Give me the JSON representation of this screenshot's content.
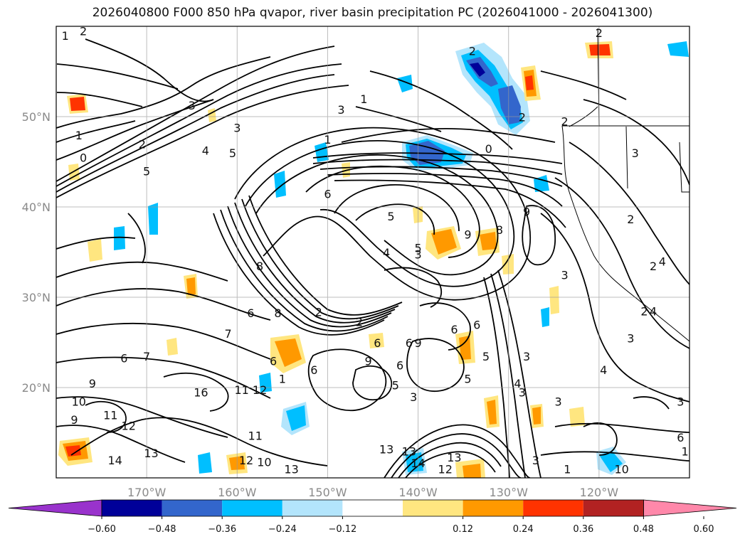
{
  "title": "2026040800 F000 850 hPa qvapor, river basin precipitation PC (2026041000 - 2026041300)",
  "map": {
    "lon_range": [
      -180,
      -110
    ],
    "lat_range": [
      10,
      60
    ],
    "gridlines": true,
    "lat_ticks": [
      {
        "value": 50,
        "label": "50°N"
      },
      {
        "value": 40,
        "label": "40°N"
      },
      {
        "value": 30,
        "label": "30°N"
      },
      {
        "value": 20,
        "label": "20°N"
      }
    ],
    "lon_ticks": [
      {
        "value": -170,
        "label": "170°W"
      },
      {
        "value": -160,
        "label": "160°W"
      },
      {
        "value": -150,
        "label": "150°W"
      },
      {
        "value": -140,
        "label": "140°W"
      },
      {
        "value": -130,
        "label": "130°W"
      },
      {
        "value": -120,
        "label": "120°W"
      }
    ],
    "contour_labels": [
      {
        "text": "2",
        "lon": -177,
        "lat": 59
      },
      {
        "text": "1",
        "lon": -179,
        "lat": 58.5
      },
      {
        "text": "3",
        "lon": -165,
        "lat": 50.8
      },
      {
        "text": "2",
        "lon": -170.5,
        "lat": 46.5
      },
      {
        "text": "1",
        "lon": -177.5,
        "lat": 47.5
      },
      {
        "text": "0",
        "lon": -177,
        "lat": 45
      },
      {
        "text": "5",
        "lon": -170,
        "lat": 43.5
      },
      {
        "text": "4",
        "lon": -163.5,
        "lat": 45.8
      },
      {
        "text": "5",
        "lon": -160.5,
        "lat": 45.5
      },
      {
        "text": "3",
        "lon": -160,
        "lat": 48.3
      },
      {
        "text": "3",
        "lon": -148.5,
        "lat": 50.3
      },
      {
        "text": "1",
        "lon": -146,
        "lat": 51.5
      },
      {
        "text": "1",
        "lon": -150,
        "lat": 47
      },
      {
        "text": "0",
        "lon": -132.2,
        "lat": 46
      },
      {
        "text": "2",
        "lon": -134,
        "lat": 56.8
      },
      {
        "text": "2",
        "lon": -120,
        "lat": 58.8
      },
      {
        "text": "2",
        "lon": -128.5,
        "lat": 49.5
      },
      {
        "text": "2",
        "lon": -123.8,
        "lat": 49
      },
      {
        "text": "3",
        "lon": -116,
        "lat": 45.5
      },
      {
        "text": "2",
        "lon": -116.5,
        "lat": 38.2
      },
      {
        "text": "2",
        "lon": -114,
        "lat": 33
      },
      {
        "text": "3",
        "lon": -123.8,
        "lat": 32
      },
      {
        "text": "4",
        "lon": -113,
        "lat": 33.5
      },
      {
        "text": "2",
        "lon": -115,
        "lat": 28
      },
      {
        "text": "4",
        "lon": -114,
        "lat": 28
      },
      {
        "text": "3",
        "lon": -116.5,
        "lat": 25
      },
      {
        "text": "4",
        "lon": -119.5,
        "lat": 21.5
      },
      {
        "text": "3",
        "lon": -111,
        "lat": 18
      },
      {
        "text": "6",
        "lon": -111,
        "lat": 14
      },
      {
        "text": "1",
        "lon": -110.5,
        "lat": 12.5
      },
      {
        "text": "10",
        "lon": -117.5,
        "lat": 10.5
      },
      {
        "text": "5",
        "lon": -143,
        "lat": 38.5
      },
      {
        "text": "4",
        "lon": -143.5,
        "lat": 34.5
      },
      {
        "text": "5",
        "lon": -140,
        "lat": 35
      },
      {
        "text": "3",
        "lon": -140,
        "lat": 34.3
      },
      {
        "text": "9",
        "lon": -134.5,
        "lat": 36.5
      },
      {
        "text": "9",
        "lon": -128,
        "lat": 39
      },
      {
        "text": "8",
        "lon": -131,
        "lat": 37
      },
      {
        "text": "6",
        "lon": -150,
        "lat": 41
      },
      {
        "text": "8",
        "lon": -157.5,
        "lat": 33
      },
      {
        "text": "6",
        "lon": -158.5,
        "lat": 27.8
      },
      {
        "text": "8",
        "lon": -155.5,
        "lat": 27.8
      },
      {
        "text": "2",
        "lon": -151,
        "lat": 27.9
      },
      {
        "text": "2",
        "lon": -146.5,
        "lat": 26.8
      },
      {
        "text": "7",
        "lon": -161,
        "lat": 25.5
      },
      {
        "text": "7",
        "lon": -170,
        "lat": 23
      },
      {
        "text": "6",
        "lon": -172.5,
        "lat": 22.8
      },
      {
        "text": "6",
        "lon": -156,
        "lat": 22.5
      },
      {
        "text": "6",
        "lon": -151.5,
        "lat": 21.5
      },
      {
        "text": "6",
        "lon": -144.5,
        "lat": 24.5
      },
      {
        "text": "6",
        "lon": -141,
        "lat": 24.5
      },
      {
        "text": "9",
        "lon": -140,
        "lat": 24.5
      },
      {
        "text": "6",
        "lon": -136,
        "lat": 26
      },
      {
        "text": "6",
        "lon": -133.5,
        "lat": 26.5
      },
      {
        "text": "5",
        "lon": -132.5,
        "lat": 23
      },
      {
        "text": "5",
        "lon": -134.5,
        "lat": 20.5
      },
      {
        "text": "3",
        "lon": -128,
        "lat": 23
      },
      {
        "text": "3",
        "lon": -128.5,
        "lat": 19
      },
      {
        "text": "3",
        "lon": -124.5,
        "lat": 18
      },
      {
        "text": "4",
        "lon": -129,
        "lat": 20
      },
      {
        "text": "9",
        "lon": -145.5,
        "lat": 22.5
      },
      {
        "text": "6",
        "lon": -142,
        "lat": 22
      },
      {
        "text": "5",
        "lon": -142.5,
        "lat": 19.8
      },
      {
        "text": "3",
        "lon": -140.5,
        "lat": 18.5
      },
      {
        "text": "1",
        "lon": -155,
        "lat": 20.5
      },
      {
        "text": "16",
        "lon": -164,
        "lat": 19
      },
      {
        "text": "11",
        "lon": -159.5,
        "lat": 19.3
      },
      {
        "text": "12",
        "lon": -157.5,
        "lat": 19.3
      },
      {
        "text": "9",
        "lon": -176,
        "lat": 20
      },
      {
        "text": "10",
        "lon": -177.5,
        "lat": 18
      },
      {
        "text": "9",
        "lon": -178,
        "lat": 16
      },
      {
        "text": "11",
        "lon": -174,
        "lat": 16.5
      },
      {
        "text": "12",
        "lon": -172,
        "lat": 15.3
      },
      {
        "text": "13",
        "lon": -169.5,
        "lat": 12.3
      },
      {
        "text": "14",
        "lon": -173.5,
        "lat": 11.5
      },
      {
        "text": "11",
        "lon": -158,
        "lat": 14.2
      },
      {
        "text": "12",
        "lon": -159,
        "lat": 11.5
      },
      {
        "text": "10",
        "lon": -157,
        "lat": 11.3
      },
      {
        "text": "13",
        "lon": -154,
        "lat": 10.5
      },
      {
        "text": "13",
        "lon": -143.5,
        "lat": 12.7
      },
      {
        "text": "14",
        "lon": -140,
        "lat": 11.2
      },
      {
        "text": "13",
        "lon": -136,
        "lat": 11.8
      },
      {
        "text": "13",
        "lon": -141,
        "lat": 12.5
      },
      {
        "text": "12",
        "lon": -137,
        "lat": 10.5
      },
      {
        "text": "1",
        "lon": -123.5,
        "lat": 10.5
      },
      {
        "text": "3",
        "lon": -127,
        "lat": 11.5
      }
    ]
  },
  "colorbar": {
    "ticks": [
      "−0.60",
      "−0.48",
      "−0.36",
      "−0.24",
      "−0.12",
      "0.12",
      "0.24",
      "0.36",
      "0.48",
      "0.60"
    ],
    "colors": [
      "#9933cc",
      "#000099",
      "#3366cc",
      "#00bfff",
      "#b3e5fc",
      "#ffffff",
      "#ffe680",
      "#ff9900",
      "#ff3300",
      "#b22222",
      "#ff88aa"
    ]
  }
}
